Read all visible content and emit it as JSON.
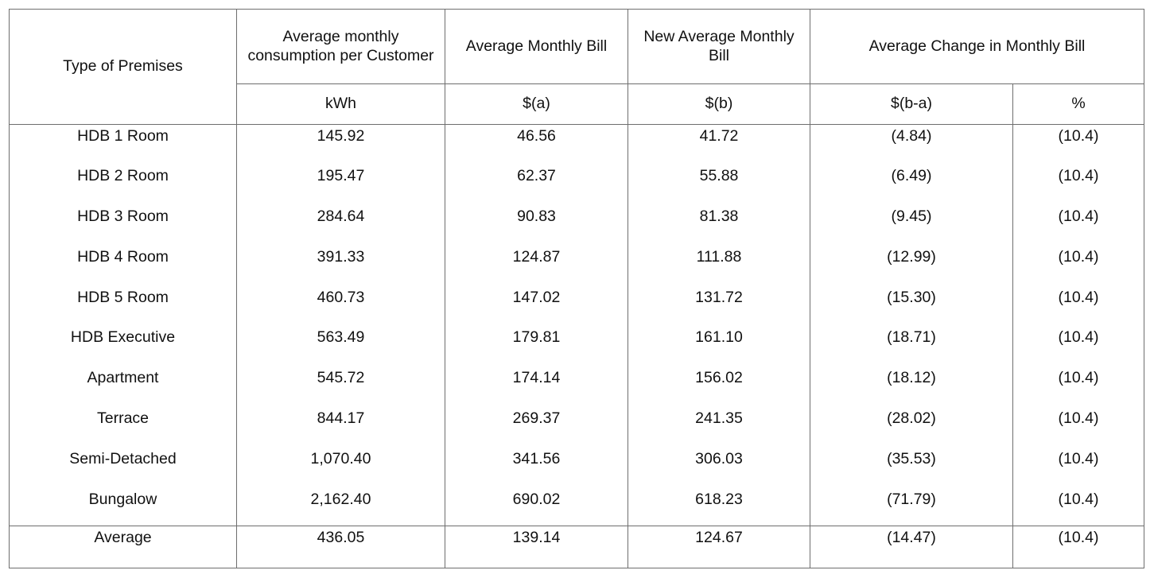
{
  "table": {
    "header": {
      "type_of_premises": "Type of Premises",
      "avg_consumption": "Average monthly consumption per Customer",
      "avg_monthly_bill": "Average Monthly Bill",
      "new_avg_monthly_bill": "New Average Monthly Bill",
      "avg_change": "Average Change in Monthly Bill"
    },
    "units": {
      "consumption": "kWh",
      "bill": "$(a)",
      "new_bill": "$(b)",
      "change_amount": "$(b-a)",
      "change_pct": "%"
    },
    "rows": [
      {
        "premises": "HDB 1 Room",
        "consumption": "145.92",
        "bill": "46.56",
        "new_bill": "41.72",
        "change": "(4.84)",
        "pct": "(10.4)"
      },
      {
        "premises": "HDB 2 Room",
        "consumption": "195.47",
        "bill": "62.37",
        "new_bill": "55.88",
        "change": "(6.49)",
        "pct": "(10.4)"
      },
      {
        "premises": "HDB 3 Room",
        "consumption": "284.64",
        "bill": "90.83",
        "new_bill": "81.38",
        "change": "(9.45)",
        "pct": "(10.4)"
      },
      {
        "premises": "HDB 4 Room",
        "consumption": "391.33",
        "bill": "124.87",
        "new_bill": "111.88",
        "change": "(12.99)",
        "pct": "(10.4)"
      },
      {
        "premises": "HDB 5 Room",
        "consumption": "460.73",
        "bill": "147.02",
        "new_bill": "131.72",
        "change": "(15.30)",
        "pct": "(10.4)"
      },
      {
        "premises": "HDB Executive",
        "consumption": "563.49",
        "bill": "179.81",
        "new_bill": "161.10",
        "change": "(18.71)",
        "pct": "(10.4)"
      },
      {
        "premises": "Apartment",
        "consumption": "545.72",
        "bill": "174.14",
        "new_bill": "156.02",
        "change": "(18.12)",
        "pct": "(10.4)"
      },
      {
        "premises": "Terrace",
        "consumption": "844.17",
        "bill": "269.37",
        "new_bill": "241.35",
        "change": "(28.02)",
        "pct": "(10.4)"
      },
      {
        "premises": "Semi-Detached",
        "consumption": "1,070.40",
        "bill": "341.56",
        "new_bill": "306.03",
        "change": "(35.53)",
        "pct": "(10.4)"
      },
      {
        "premises": "Bungalow",
        "consumption": "2,162.40",
        "bill": "690.02",
        "new_bill": "618.23",
        "change": "(71.79)",
        "pct": "(10.4)"
      }
    ],
    "average": {
      "premises": "Average",
      "consumption": "436.05",
      "bill": "139.14",
      "new_bill": "124.67",
      "change": "(14.47)",
      "pct": "(10.4)"
    }
  }
}
